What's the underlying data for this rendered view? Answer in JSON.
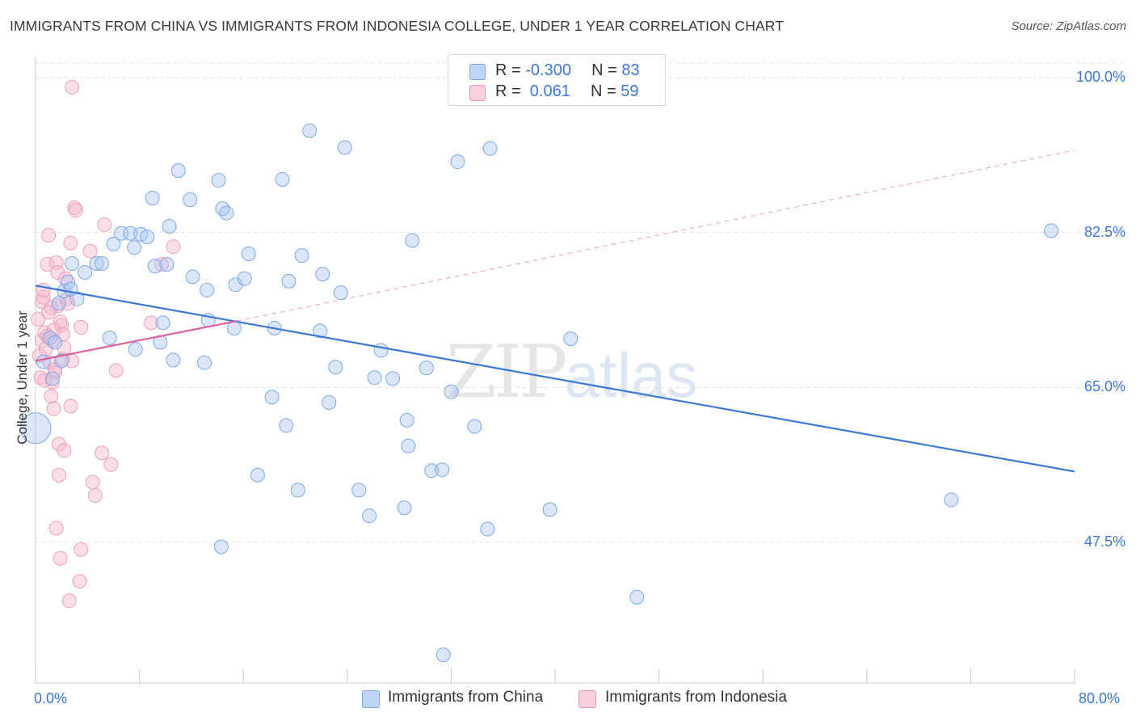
{
  "header": {
    "title": "IMMIGRANTS FROM CHINA VS IMMIGRANTS FROM INDONESIA COLLEGE, UNDER 1 YEAR CORRELATION CHART",
    "source": "Source: ZipAtlas.com"
  },
  "watermark": {
    "zip": "ZIP",
    "atlas": "atlas"
  },
  "legend": {
    "china": {
      "r_label": "R = ",
      "r_value": "-0.300",
      "n_label": "N = ",
      "n_value": "83",
      "color": "#a9c6f0"
    },
    "indonesia": {
      "r_label": "R = ",
      "r_value": " 0.061",
      "n_label": "N = ",
      "n_value": "59",
      "color": "#f6b8cb"
    }
  },
  "bottom_legend": {
    "china_label": "Immigrants from China",
    "indonesia_label": "Immigrants from Indonesia"
  },
  "chart_data": {
    "type": "scatter",
    "title": "IMMIGRANTS FROM CHINA VS IMMIGRANTS FROM INDONESIA COLLEGE, UNDER 1 YEAR CORRELATION CHART",
    "xlabel": "",
    "ylabel": "College, Under 1 year",
    "x_unit": "%",
    "xlim": [
      0,
      80
    ],
    "ylim": [
      32,
      102
    ],
    "x_tick_labels": [
      "0.0%",
      "80.0%"
    ],
    "y_ticks": [
      47.5,
      65.0,
      82.5,
      100.0
    ],
    "y_tick_labels": [
      "47.5%",
      "65.0%",
      "82.5%",
      "100.0%"
    ],
    "grid": "horizontal dashed",
    "legend_position": "top-center",
    "series": [
      {
        "name": "Immigrants from China",
        "color": "#a9c6f0",
        "line_color": "#3b78d8",
        "r": -0.3,
        "n": 83,
        "trend": {
          "x": [
            0,
            80
          ],
          "y": [
            76.5,
            55.5
          ]
        },
        "points": [
          [
            0.0,
            60.4
          ],
          [
            0.6,
            67.9
          ],
          [
            1.1,
            70.6
          ],
          [
            1.5,
            70.1
          ],
          [
            1.8,
            74.5
          ],
          [
            2.2,
            75.9
          ],
          [
            2.5,
            76.9
          ],
          [
            2.7,
            76.1
          ],
          [
            2.8,
            79.0
          ],
          [
            3.8,
            78.0
          ],
          [
            4.7,
            79.0
          ],
          [
            5.1,
            79.0
          ],
          [
            5.7,
            70.6
          ],
          [
            6.0,
            81.2
          ],
          [
            6.6,
            82.4
          ],
          [
            7.3,
            82.4
          ],
          [
            7.6,
            80.8
          ],
          [
            7.7,
            69.3
          ],
          [
            8.1,
            82.3
          ],
          [
            8.6,
            82.0
          ],
          [
            9.0,
            86.4
          ],
          [
            9.2,
            78.7
          ],
          [
            9.6,
            70.1
          ],
          [
            9.8,
            72.3
          ],
          [
            10.3,
            83.2
          ],
          [
            10.6,
            68.1
          ],
          [
            11.0,
            89.5
          ],
          [
            11.9,
            86.2
          ],
          [
            12.1,
            77.5
          ],
          [
            13.0,
            67.8
          ],
          [
            13.2,
            76.0
          ],
          [
            13.3,
            72.6
          ],
          [
            14.1,
            88.4
          ],
          [
            14.4,
            85.2
          ],
          [
            14.7,
            84.7
          ],
          [
            15.3,
            71.7
          ],
          [
            15.4,
            76.6
          ],
          [
            16.1,
            77.3
          ],
          [
            16.4,
            80.1
          ],
          [
            17.1,
            55.1
          ],
          [
            18.2,
            63.9
          ],
          [
            18.4,
            71.7
          ],
          [
            19.0,
            88.5
          ],
          [
            19.3,
            60.7
          ],
          [
            19.5,
            77.0
          ],
          [
            20.2,
            53.4
          ],
          [
            20.5,
            79.9
          ],
          [
            21.1,
            94.0
          ],
          [
            21.9,
            71.4
          ],
          [
            22.1,
            77.8
          ],
          [
            22.6,
            63.3
          ],
          [
            23.1,
            67.3
          ],
          [
            23.5,
            75.7
          ],
          [
            23.8,
            92.1
          ],
          [
            24.9,
            53.4
          ],
          [
            25.7,
            50.5
          ],
          [
            26.1,
            66.1
          ],
          [
            26.6,
            69.2
          ],
          [
            27.5,
            66.0
          ],
          [
            28.4,
            51.4
          ],
          [
            28.6,
            61.3
          ],
          [
            28.7,
            58.4
          ],
          [
            29.0,
            81.6
          ],
          [
            30.5,
            55.6
          ],
          [
            31.3,
            55.7
          ],
          [
            30.1,
            67.2
          ],
          [
            32.0,
            64.5
          ],
          [
            32.5,
            90.5
          ],
          [
            33.8,
            60.6
          ],
          [
            34.8,
            49.0
          ],
          [
            35.0,
            92.0
          ],
          [
            39.6,
            51.2
          ],
          [
            41.2,
            70.5
          ],
          [
            46.3,
            41.3
          ],
          [
            31.4,
            34.8
          ],
          [
            70.5,
            52.3
          ],
          [
            78.2,
            82.7
          ],
          [
            14.3,
            47.0
          ],
          [
            10.1,
            78.9
          ],
          [
            2.0,
            68.0
          ],
          [
            3.2,
            75.0
          ],
          [
            1.3,
            66.0
          ],
          [
            36.5,
            98.0
          ]
        ]
      },
      {
        "name": "Immigrants from Indonesia",
        "color": "#f6b8cb",
        "line_color": "#e0619a",
        "r": 0.061,
        "n": 59,
        "trend": {
          "x": [
            0,
            15.5
          ],
          "y": [
            68.0,
            72.5
          ]
        },
        "trend_extended": {
          "x": [
            15.5,
            80
          ],
          "y": [
            72.5,
            91.8
          ]
        },
        "points": [
          [
            0.2,
            72.7
          ],
          [
            0.3,
            68.6
          ],
          [
            0.4,
            66.1
          ],
          [
            0.5,
            70.3
          ],
          [
            0.5,
            74.7
          ],
          [
            0.6,
            75.2
          ],
          [
            0.7,
            71.2
          ],
          [
            0.8,
            69.4
          ],
          [
            0.9,
            78.9
          ],
          [
            1.0,
            82.2
          ],
          [
            1.1,
            67.8
          ],
          [
            1.2,
            64.0
          ],
          [
            1.3,
            65.6
          ],
          [
            1.3,
            70.3
          ],
          [
            1.4,
            62.6
          ],
          [
            1.5,
            66.7
          ],
          [
            1.6,
            79.1
          ],
          [
            1.6,
            49.1
          ],
          [
            1.7,
            78.0
          ],
          [
            1.7,
            74.2
          ],
          [
            1.8,
            58.6
          ],
          [
            1.8,
            55.1
          ],
          [
            1.9,
            45.7
          ],
          [
            2.0,
            72.0
          ],
          [
            2.1,
            71.0
          ],
          [
            2.1,
            68.2
          ],
          [
            2.2,
            57.9
          ],
          [
            2.3,
            77.3
          ],
          [
            2.4,
            75.0
          ],
          [
            2.5,
            74.5
          ],
          [
            2.6,
            40.9
          ],
          [
            2.7,
            81.3
          ],
          [
            2.7,
            62.9
          ],
          [
            2.8,
            68.0
          ],
          [
            3.0,
            85.3
          ],
          [
            3.1,
            85.0
          ],
          [
            3.4,
            43.1
          ],
          [
            3.5,
            71.8
          ],
          [
            3.5,
            46.7
          ],
          [
            4.2,
            80.4
          ],
          [
            4.4,
            54.3
          ],
          [
            4.6,
            52.8
          ],
          [
            5.1,
            57.6
          ],
          [
            5.3,
            83.4
          ],
          [
            5.8,
            56.3
          ],
          [
            6.2,
            66.9
          ],
          [
            8.9,
            72.3
          ],
          [
            9.7,
            78.9
          ],
          [
            10.6,
            80.9
          ],
          [
            2.8,
            98.9
          ],
          [
            1.2,
            74.0
          ],
          [
            0.9,
            70.8
          ],
          [
            1.5,
            67.0
          ],
          [
            2.2,
            69.5
          ],
          [
            1.0,
            73.5
          ],
          [
            0.7,
            65.8
          ],
          [
            1.9,
            72.4
          ],
          [
            1.4,
            71.5
          ],
          [
            0.6,
            76.0
          ]
        ]
      }
    ]
  }
}
